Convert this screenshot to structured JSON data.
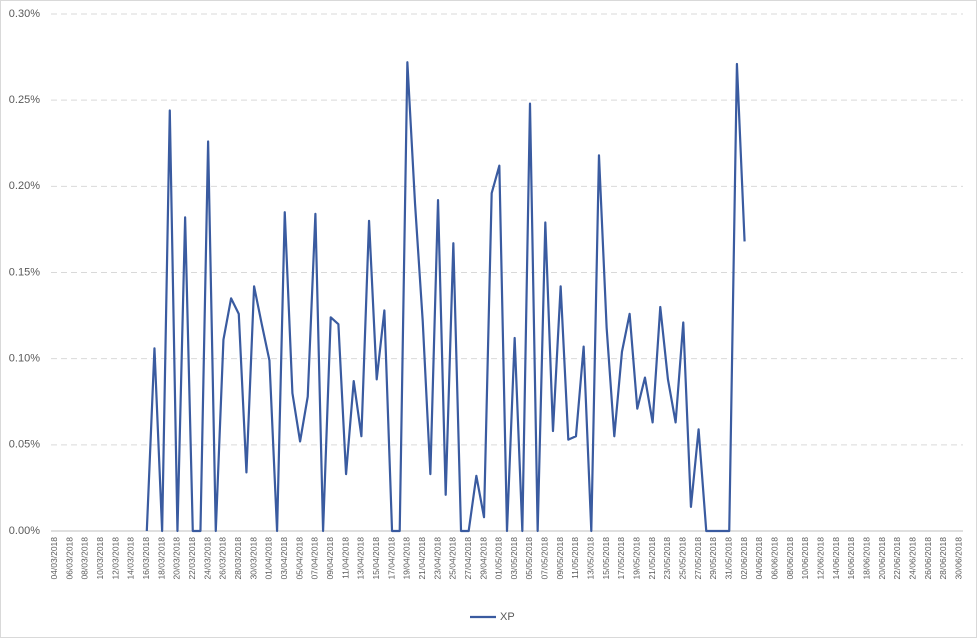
{
  "chart_data": {
    "type": "line",
    "categories": [
      "04/03/2018",
      null,
      "06/03/2018",
      null,
      "08/03/2018",
      null,
      "10/03/2018",
      null,
      "12/03/2018",
      null,
      "14/03/2018",
      null,
      "16/03/2018",
      null,
      "18/03/2018",
      null,
      "20/03/2018",
      null,
      "22/03/2018",
      null,
      "24/03/2018",
      null,
      "26/03/2018",
      null,
      "28/03/2018",
      null,
      "30/03/2018",
      null,
      "01/04/2018",
      null,
      "03/04/2018",
      null,
      "05/04/2018",
      null,
      "07/04/2018",
      null,
      "09/04/2018",
      null,
      "11/04/2018",
      null,
      "13/04/2018",
      null,
      "15/04/2018",
      null,
      "17/04/2018",
      null,
      "19/04/2018",
      null,
      "21/04/2018",
      null,
      "23/04/2018",
      null,
      "25/04/2018",
      null,
      "27/04/2018",
      null,
      "29/04/2018",
      null,
      "01/05/2018",
      null,
      "03/05/2018",
      null,
      "05/05/2018",
      null,
      "07/05/2018",
      null,
      "09/05/2018",
      null,
      "11/05/2018",
      null,
      "13/05/2018",
      null,
      "15/05/2018",
      null,
      "17/05/2018",
      null,
      "19/05/2018",
      null,
      "21/05/2018",
      null,
      "23/05/2018",
      null,
      "25/05/2018",
      null,
      "27/05/2018",
      null,
      "29/05/2018",
      null,
      "31/05/2018",
      null,
      "02/06/2018",
      null,
      "04/06/2018",
      null,
      "06/06/2018",
      null,
      "08/06/2018",
      null,
      "10/06/2018",
      null,
      "12/06/2018",
      null,
      "14/06/2018",
      null,
      "16/06/2018",
      null,
      "18/06/2018",
      null,
      "20/06/2018",
      null,
      "22/06/2018",
      null,
      "24/06/2018",
      null,
      "26/06/2018",
      null,
      "28/06/2018",
      null,
      "30/06/2018"
    ],
    "series": [
      {
        "name": "XP",
        "color": "#3a5ba0",
        "values": [
          null,
          null,
          null,
          null,
          null,
          null,
          null,
          null,
          null,
          null,
          null,
          null,
          0,
          0.106,
          0,
          0.244,
          0,
          0.182,
          0,
          0,
          0.226,
          0,
          0.111,
          0.135,
          0.126,
          0.034,
          0.142,
          0.12,
          0.099,
          0,
          0.185,
          0.08,
          0.052,
          0.078,
          0.184,
          0,
          0.124,
          0.12,
          0.033,
          0.087,
          0.055,
          0.18,
          0.088,
          0.128,
          0,
          0,
          0.272,
          0.19,
          0.122,
          0.033,
          0.192,
          0.021,
          0.167,
          0,
          0,
          0.032,
          0.008,
          0.196,
          0.212,
          0,
          0.112,
          0,
          0.248,
          0,
          0.179,
          0.058,
          0.142,
          0.053,
          0.055,
          0.107,
          0,
          0.218,
          0.118,
          0.055,
          0.104,
          0.126,
          0.071,
          0.089,
          0.063,
          0.13,
          0.088,
          0.063,
          0.121,
          0.014,
          0.059,
          0,
          0,
          0,
          0,
          0.271,
          0.168,
          null,
          null,
          null,
          null,
          null,
          null,
          null,
          null,
          null,
          null,
          null,
          null,
          null,
          null,
          null,
          null,
          null,
          null,
          null,
          null,
          null,
          null,
          null,
          null,
          null,
          null,
          null,
          null
        ]
      }
    ],
    "ylim": [
      0,
      0.3
    ],
    "yticks": [
      {
        "value": 0,
        "label": "0.00%"
      },
      {
        "value": 0.05,
        "label": "0.05%"
      },
      {
        "value": 0.1,
        "label": "0.10%"
      },
      {
        "value": 0.15,
        "label": "0.15%"
      },
      {
        "value": 0.2,
        "label": "0.20%"
      },
      {
        "value": 0.25,
        "label": "0.25%"
      },
      {
        "value": 0.3,
        "label": "0.30%"
      }
    ],
    "grid": true,
    "legend": "bottom"
  }
}
